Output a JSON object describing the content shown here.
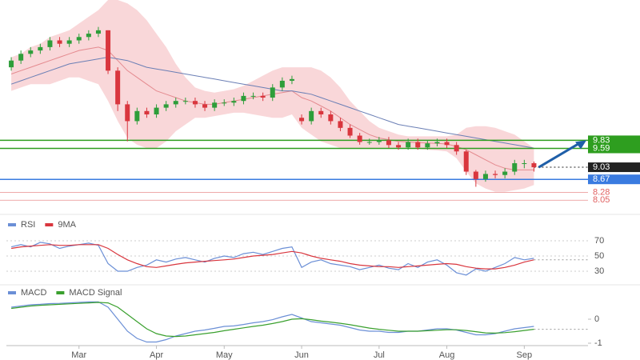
{
  "chart_data": [
    {
      "type": "candlestick",
      "categories": [
        null,
        null,
        null,
        null,
        null,
        null,
        null,
        "Mar",
        null,
        null,
        null,
        null,
        null,
        null,
        null,
        "Apr",
        null,
        null,
        null,
        null,
        null,
        null,
        "May",
        null,
        null,
        null,
        null,
        null,
        null,
        null,
        "Jun",
        null,
        null,
        null,
        null,
        null,
        null,
        null,
        "Jul",
        null,
        null,
        null,
        null,
        null,
        null,
        "Aug",
        null,
        null,
        null,
        null,
        null,
        null,
        null,
        "Sep",
        null
      ],
      "open": [
        12.0,
        12.2,
        12.4,
        12.5,
        12.6,
        12.8,
        12.7,
        12.8,
        12.9,
        13.0,
        13.1,
        11.9,
        10.9,
        10.4,
        10.7,
        10.6,
        10.8,
        10.9,
        11.0,
        11.0,
        10.9,
        10.8,
        10.95,
        10.95,
        11.0,
        11.15,
        11.15,
        11.1,
        11.4,
        11.6,
        10.5,
        10.4,
        10.7,
        10.6,
        10.4,
        10.2,
        9.97,
        9.78,
        9.78,
        9.83,
        9.69,
        9.62,
        9.78,
        9.62,
        9.74,
        9.78,
        9.69,
        9.5,
        8.9,
        8.68,
        8.83,
        8.8,
        8.9,
        9.15,
        9.15
      ],
      "high": [
        12.3,
        12.5,
        12.6,
        12.7,
        12.9,
        12.9,
        12.9,
        13.0,
        13.1,
        13.2,
        13.1,
        12.0,
        11.0,
        10.8,
        10.8,
        10.9,
        11.0,
        11.1,
        11.1,
        11.1,
        11.0,
        11.05,
        11.05,
        11.1,
        11.25,
        11.25,
        11.25,
        11.5,
        11.7,
        11.75,
        10.6,
        10.8,
        10.8,
        10.7,
        10.5,
        10.3,
        10.05,
        9.88,
        9.93,
        9.93,
        9.78,
        9.88,
        9.88,
        9.84,
        9.88,
        9.88,
        9.78,
        9.55,
        8.95,
        8.93,
        8.93,
        9.0,
        9.25,
        9.25,
        9.2
      ],
      "low": [
        11.9,
        12.1,
        12.3,
        12.4,
        12.5,
        12.6,
        12.6,
        12.7,
        12.8,
        12.9,
        11.8,
        10.7,
        9.8,
        10.3,
        10.5,
        10.5,
        10.7,
        10.8,
        10.9,
        10.8,
        10.7,
        10.7,
        10.85,
        10.85,
        10.9,
        11.05,
        11.0,
        11.0,
        11.3,
        11.5,
        10.3,
        10.3,
        10.5,
        10.3,
        10.1,
        9.9,
        9.7,
        9.7,
        9.7,
        9.6,
        9.55,
        9.55,
        9.55,
        9.55,
        9.65,
        9.6,
        9.4,
        8.8,
        8.45,
        8.6,
        8.7,
        8.7,
        8.8,
        9.0,
        8.9
      ],
      "close": [
        12.2,
        12.4,
        12.5,
        12.6,
        12.8,
        12.7,
        12.8,
        12.9,
        13.0,
        13.1,
        11.9,
        10.9,
        10.4,
        10.7,
        10.6,
        10.8,
        10.9,
        11.0,
        11.0,
        10.9,
        10.8,
        10.95,
        10.95,
        11.0,
        11.15,
        11.15,
        11.1,
        11.4,
        11.6,
        11.65,
        10.4,
        10.7,
        10.6,
        10.4,
        10.2,
        9.97,
        9.78,
        9.78,
        9.83,
        9.69,
        9.62,
        9.78,
        9.62,
        9.74,
        9.78,
        9.69,
        9.5,
        8.9,
        8.68,
        8.83,
        8.8,
        8.9,
        9.15,
        9.15,
        9.03
      ],
      "up_color": "#2e9e3a",
      "down_color": "#d9363e",
      "band": {
        "color": "#f8cdd0",
        "upper": [
          12.3,
          12.4,
          12.6,
          12.7,
          12.9,
          13.0,
          13.1,
          13.3,
          13.5,
          13.7,
          14.0,
          14.0,
          13.9,
          13.7,
          13.4,
          13.0,
          12.6,
          12.1,
          11.7,
          11.4,
          11.3,
          11.25,
          11.3,
          11.35,
          11.45,
          11.6,
          11.75,
          11.9,
          12.0,
          12.0,
          12.0,
          12.0,
          11.9,
          11.7,
          11.4,
          11.0,
          10.7,
          10.4,
          10.2,
          10.1,
          10.0,
          9.95,
          9.95,
          9.95,
          9.95,
          9.95,
          10.0,
          10.2,
          10.25,
          10.25,
          10.2,
          10.1,
          10.0,
          9.8,
          9.6
        ],
        "lower": [
          11.3,
          11.4,
          11.5,
          11.5,
          11.5,
          11.6,
          11.7,
          11.7,
          11.6,
          11.5,
          11.0,
          10.4,
          9.9,
          9.7,
          9.6,
          9.6,
          9.8,
          10.1,
          10.3,
          10.5,
          10.5,
          10.55,
          10.6,
          10.65,
          10.65,
          10.6,
          10.55,
          10.5,
          10.5,
          10.6,
          10.2,
          10.0,
          9.8,
          9.7,
          9.6,
          9.6,
          9.6,
          9.6,
          9.6,
          9.6,
          9.6,
          9.6,
          9.57,
          9.55,
          9.53,
          9.5,
          9.3,
          8.9,
          8.55,
          8.4,
          8.3,
          8.3,
          8.35,
          8.4,
          8.5
        ]
      },
      "series": [
        {
          "color": "#e48a8f",
          "values": [
            11.8,
            11.9,
            12.0,
            12.1,
            12.2,
            12.3,
            12.4,
            12.5,
            12.55,
            12.6,
            12.5,
            12.2,
            11.9,
            11.7,
            11.5,
            11.3,
            11.2,
            11.1,
            11.0,
            10.95,
            10.9,
            10.9,
            10.95,
            11.0,
            11.05,
            11.1,
            11.15,
            11.2,
            11.25,
            11.3,
            11.1,
            11.0,
            10.85,
            10.7,
            10.5,
            10.3,
            10.15,
            10.0,
            9.9,
            9.85,
            9.8,
            9.78,
            9.76,
            9.75,
            9.74,
            9.72,
            9.65,
            9.55,
            9.4,
            9.25,
            9.1,
            9.0,
            8.95,
            8.95,
            8.95
          ]
        },
        {
          "color": "#6b7fb5",
          "values": [
            11.5,
            11.6,
            11.7,
            11.8,
            11.9,
            12.0,
            12.1,
            12.15,
            12.2,
            12.25,
            12.3,
            12.25,
            12.2,
            12.1,
            12.0,
            11.95,
            11.9,
            11.85,
            11.8,
            11.75,
            11.7,
            11.65,
            11.6,
            11.55,
            11.5,
            11.45,
            11.4,
            11.35,
            11.3,
            11.3,
            11.25,
            11.2,
            11.1,
            11.0,
            10.9,
            10.8,
            10.7,
            10.6,
            10.5,
            10.4,
            10.3,
            10.25,
            10.2,
            10.15,
            10.1,
            10.05,
            10.0,
            9.95,
            9.9,
            9.85,
            9.8,
            9.75,
            9.7,
            9.65,
            9.6
          ]
        }
      ],
      "levels": [
        {
          "value": 9.83,
          "color": "#2e9e1f",
          "style": "tag"
        },
        {
          "value": 9.59,
          "color": "#2e9e1f",
          "style": "tag"
        },
        {
          "value": 9.03,
          "color": "#222222",
          "style": "dotted"
        },
        {
          "value": 8.67,
          "color": "#3a7be0",
          "style": "tag"
        },
        {
          "value": 8.28,
          "color": "#e06060",
          "style": "thin"
        },
        {
          "value": 8.05,
          "color": "#e06060",
          "style": "thin"
        }
      ],
      "ylim": [
        7.7,
        14.0
      ]
    },
    {
      "type": "line",
      "series": [
        {
          "name": "RSI",
          "color": "#6b8fd6",
          "values": [
            62,
            65,
            62,
            68,
            66,
            60,
            63,
            65,
            67,
            64,
            40,
            30,
            30,
            35,
            38,
            45,
            42,
            46,
            48,
            45,
            42,
            47,
            50,
            48,
            53,
            55,
            52,
            56,
            60,
            62,
            35,
            42,
            45,
            40,
            38,
            36,
            32,
            35,
            38,
            34,
            32,
            40,
            35,
            42,
            45,
            38,
            28,
            25,
            33,
            30,
            35,
            40,
            48,
            45,
            47
          ]
        },
        {
          "name": "9MA",
          "color": "#d9363e",
          "values": [
            60,
            62,
            63,
            64,
            65,
            64,
            64,
            65,
            65,
            65,
            60,
            52,
            45,
            40,
            36,
            35,
            37,
            39,
            41,
            42,
            43,
            44,
            45,
            46,
            48,
            50,
            51,
            52,
            54,
            56,
            54,
            50,
            47,
            45,
            43,
            40,
            38,
            37,
            36,
            36,
            35,
            36,
            37,
            38,
            39,
            40,
            39,
            36,
            34,
            33,
            33,
            35,
            38,
            42,
            45
          ]
        }
      ],
      "ylim": [
        20,
        80
      ],
      "yticks": [
        70,
        50,
        30
      ],
      "grid": true
    },
    {
      "type": "line",
      "series": [
        {
          "name": "MACD",
          "color": "#6b8fd6",
          "values": [
            0.5,
            0.55,
            0.6,
            0.62,
            0.65,
            0.66,
            0.68,
            0.7,
            0.72,
            0.72,
            0.5,
            0.0,
            -0.5,
            -0.8,
            -0.95,
            -0.95,
            -0.85,
            -0.7,
            -0.6,
            -0.5,
            -0.45,
            -0.38,
            -0.3,
            -0.28,
            -0.22,
            -0.15,
            -0.1,
            -0.02,
            0.1,
            0.2,
            0.05,
            -0.1,
            -0.15,
            -0.2,
            -0.25,
            -0.35,
            -0.45,
            -0.5,
            -0.5,
            -0.55,
            -0.55,
            -0.5,
            -0.5,
            -0.45,
            -0.4,
            -0.4,
            -0.45,
            -0.55,
            -0.65,
            -0.65,
            -0.6,
            -0.5,
            -0.4,
            -0.35,
            -0.3
          ]
        },
        {
          "name": "MACD Signal",
          "color": "#3aa02e",
          "values": [
            0.45,
            0.5,
            0.55,
            0.58,
            0.6,
            0.62,
            0.64,
            0.66,
            0.68,
            0.7,
            0.68,
            0.5,
            0.2,
            -0.1,
            -0.4,
            -0.6,
            -0.7,
            -0.72,
            -0.7,
            -0.65,
            -0.6,
            -0.55,
            -0.48,
            -0.42,
            -0.36,
            -0.3,
            -0.25,
            -0.18,
            -0.1,
            0.0,
            0.02,
            -0.02,
            -0.08,
            -0.12,
            -0.17,
            -0.23,
            -0.3,
            -0.37,
            -0.42,
            -0.46,
            -0.5,
            -0.5,
            -0.5,
            -0.48,
            -0.46,
            -0.44,
            -0.44,
            -0.47,
            -0.52,
            -0.57,
            -0.58,
            -0.56,
            -0.52,
            -0.47,
            -0.42
          ]
        }
      ],
      "ylim": [
        -1.1,
        0.8
      ],
      "yticks": [
        0,
        -1
      ],
      "grid": false
    }
  ]
}
